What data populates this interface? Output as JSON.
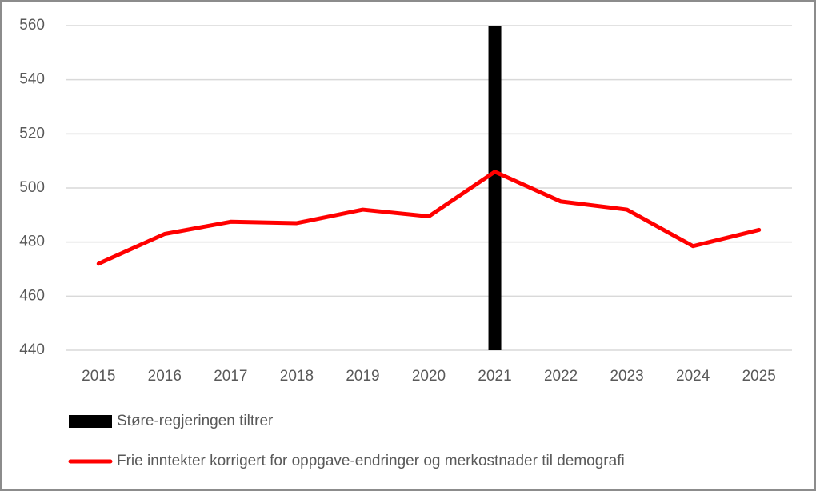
{
  "chart_data": {
    "type": "line",
    "categories": [
      "2015",
      "2016",
      "2017",
      "2018",
      "2019",
      "2020",
      "2021",
      "2022",
      "2023",
      "2024",
      "2025"
    ],
    "series": [
      {
        "name": "Støre-regjeringen tiltrer",
        "type": "bar",
        "color": "#000000",
        "values": [
          null,
          null,
          null,
          null,
          null,
          null,
          560,
          null,
          null,
          null,
          null
        ]
      },
      {
        "name": "Frie inntekter korrigert for oppgave-endringer og merkostnader til demografi",
        "type": "line",
        "color": "#ff0000",
        "values": [
          472,
          483,
          487.5,
          487,
          492,
          489.5,
          506,
          495,
          492,
          478.5,
          484.5
        ]
      }
    ],
    "ylim": [
      440,
      560
    ],
    "yticks": [
      440,
      460,
      480,
      500,
      520,
      540,
      560
    ],
    "grid": true,
    "legend": "bottom"
  }
}
